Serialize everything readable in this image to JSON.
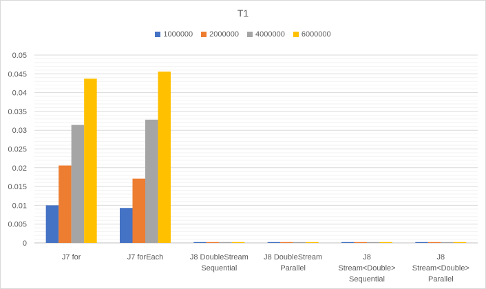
{
  "chart_data": {
    "type": "bar",
    "title": "T1",
    "categories": [
      [
        "J7 for"
      ],
      [
        "J7 forEach"
      ],
      [
        "J8 DoubleStream",
        "Sequential"
      ],
      [
        "J8 DoubleStream",
        "Parallel"
      ],
      [
        "J8",
        "Stream<Double>",
        "Sequential"
      ],
      [
        "J8",
        "Stream<Double>",
        "Parallel"
      ]
    ],
    "series": [
      {
        "name": "1000000",
        "color": "#4472c4",
        "values": [
          0.01,
          0.0093,
          0.0001,
          0.0001,
          0.0001,
          0.0001
        ]
      },
      {
        "name": "2000000",
        "color": "#ed7d31",
        "values": [
          0.0206,
          0.0171,
          0.0001,
          0.0001,
          0.0001,
          0.0001
        ]
      },
      {
        "name": "4000000",
        "color": "#a5a5a5",
        "values": [
          0.0314,
          0.0328,
          0.0001,
          0.0001,
          0.0001,
          0.0001
        ]
      },
      {
        "name": "6000000",
        "color": "#ffc000",
        "values": [
          0.0437,
          0.0456,
          0.0001,
          0.0001,
          0.0001,
          0.0001
        ]
      }
    ],
    "yticks": [
      "0",
      "0.005",
      "0.01",
      "0.015",
      "0.02",
      "0.025",
      "0.03",
      "0.035",
      "0.04",
      "0.045",
      "0.05"
    ],
    "ylim": [
      0,
      0.05
    ],
    "minor_gridlines": true,
    "legend_position": "top"
  }
}
